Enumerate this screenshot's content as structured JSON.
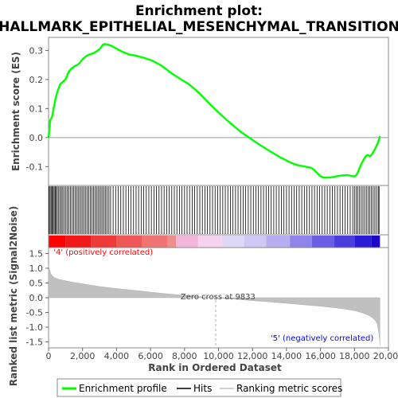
{
  "chart_data": [
    {
      "type": "line",
      "title_line1": "Enrichment plot:",
      "title_line2": "HALLMARK_EPITHELIAL_MESENCHYMAL_TRANSITION",
      "ylabel": "Enrichment score (ES)",
      "yticks": [
        "0.3",
        "0.2",
        "0.1",
        "0.0",
        "-0.1"
      ],
      "ytick_values": [
        0.3,
        0.2,
        0.1,
        0.0,
        -0.1
      ],
      "xlim": [
        0,
        20000
      ],
      "ylim": [
        -0.165,
        0.345
      ],
      "color": "#00ff00",
      "series": [
        {
          "name": "Enrichment profile",
          "x": [
            0,
            100,
            200,
            300,
            400,
            500,
            600,
            700,
            800,
            900,
            1000,
            1100,
            1200,
            1300,
            1400,
            1500,
            1600,
            1700,
            1800,
            1900,
            2000,
            2100,
            2200,
            2300,
            2400,
            2500,
            2600,
            2700,
            2800,
            2900,
            3000,
            3100,
            3200,
            3300,
            3400,
            3500,
            3600,
            3700,
            3800,
            4000,
            4200,
            4400,
            4600,
            4800,
            5000,
            5200,
            5400,
            5600,
            5800,
            6000,
            6200,
            6400,
            6600,
            6800,
            7000,
            7200,
            7400,
            7600,
            7800,
            8000,
            8200,
            8400,
            8600,
            8800,
            9000,
            9200,
            9400,
            9600,
            9800,
            10000,
            10200,
            10400,
            10600,
            10800,
            11000,
            11200,
            11400,
            11600,
            11800,
            12000,
            12200,
            12400,
            12600,
            12800,
            13000,
            13200,
            13400,
            13600,
            13800,
            14000,
            14200,
            14400,
            14600,
            14800,
            15000,
            15200,
            15400,
            15600,
            15800,
            16000,
            16200,
            16400,
            16600,
            16800,
            17000,
            17200,
            17400,
            17600,
            17800,
            18000,
            18100,
            18200,
            18300,
            18400,
            18500,
            18600,
            18700,
            18800,
            18900,
            19000,
            19100,
            19200,
            19300,
            19400,
            19500
          ],
          "y": [
            0.0,
            0.06,
            0.07,
            0.1,
            0.13,
            0.155,
            0.17,
            0.185,
            0.19,
            0.195,
            0.2,
            0.215,
            0.228,
            0.235,
            0.24,
            0.245,
            0.248,
            0.25,
            0.255,
            0.262,
            0.27,
            0.275,
            0.28,
            0.283,
            0.286,
            0.288,
            0.29,
            0.293,
            0.296,
            0.3,
            0.305,
            0.312,
            0.32,
            0.322,
            0.321,
            0.32,
            0.318,
            0.316,
            0.313,
            0.306,
            0.3,
            0.294,
            0.29,
            0.285,
            0.284,
            0.281,
            0.278,
            0.275,
            0.271,
            0.267,
            0.262,
            0.256,
            0.249,
            0.241,
            0.232,
            0.223,
            0.215,
            0.208,
            0.2,
            0.193,
            0.186,
            0.177,
            0.167,
            0.156,
            0.145,
            0.133,
            0.121,
            0.109,
            0.098,
            0.087,
            0.076,
            0.065,
            0.055,
            0.045,
            0.035,
            0.025,
            0.016,
            0.008,
            0.0,
            -0.008,
            -0.016,
            -0.024,
            -0.031,
            -0.039,
            -0.046,
            -0.053,
            -0.06,
            -0.067,
            -0.073,
            -0.079,
            -0.085,
            -0.09,
            -0.094,
            -0.097,
            -0.099,
            -0.101,
            -0.103,
            -0.11,
            -0.122,
            -0.133,
            -0.138,
            -0.138,
            -0.137,
            -0.135,
            -0.133,
            -0.131,
            -0.13,
            -0.129,
            -0.132,
            -0.134,
            -0.13,
            -0.12,
            -0.105,
            -0.092,
            -0.08,
            -0.07,
            -0.062,
            -0.06,
            -0.065,
            -0.06,
            -0.05,
            -0.04,
            -0.028,
            -0.015,
            0.005
          ]
        }
      ]
    },
    {
      "type": "hits",
      "label": "Hits",
      "xlim": [
        0,
        20000
      ],
      "positions": [
        30,
        90,
        150,
        210,
        270,
        330,
        390,
        450,
        520,
        600,
        680,
        760,
        840,
        930,
        1020,
        1110,
        1200,
        1290,
        1380,
        1470,
        1560,
        1650,
        1740,
        1830,
        1920,
        2010,
        2100,
        2190,
        2280,
        2370,
        2460,
        2550,
        2640,
        2730,
        2820,
        2910,
        3000,
        3090,
        3180,
        3270,
        3360,
        3450,
        3550,
        3650,
        3800,
        3950,
        4100,
        4250,
        4400,
        4550,
        4700,
        4850,
        5000,
        5150,
        5300,
        5450,
        5600,
        5750,
        5900,
        6050,
        6200,
        6350,
        6500,
        6650,
        6800,
        6950,
        7100,
        7250,
        7400,
        7550,
        7700,
        7850,
        8000,
        8150,
        8300,
        8450,
        8600,
        8750,
        8900,
        9050,
        9200,
        9350,
        9500,
        9650,
        9800,
        9950,
        10100,
        10250,
        10400,
        10550,
        10700,
        10850,
        11000,
        11150,
        11300,
        11450,
        11600,
        11750,
        11900,
        12050,
        12200,
        12350,
        12500,
        12650,
        12800,
        12950,
        13100,
        13250,
        13400,
        13550,
        13700,
        13850,
        14000,
        14150,
        14300,
        14450,
        14600,
        14750,
        14900,
        15050,
        15200,
        15350,
        15500,
        15650,
        15800,
        15950,
        16100,
        16250,
        16400,
        16550,
        16700,
        16850,
        17000,
        17150,
        17300,
        17450,
        17600,
        17750,
        17900,
        18000,
        18100,
        18200,
        18300,
        18400,
        18500,
        18600,
        18700,
        18800,
        18900,
        19000,
        19100,
        19200,
        19300,
        19400,
        19450
      ]
    },
    {
      "type": "heatmap",
      "xlim": [
        0,
        20000
      ],
      "segments": [
        {
          "x": [
            0,
            1000
          ],
          "color": "#ff0000"
        },
        {
          "x": [
            1000,
            2500
          ],
          "color": "#f01818"
        },
        {
          "x": [
            2500,
            4000
          ],
          "color": "#f03a3a"
        },
        {
          "x": [
            4000,
            5500
          ],
          "color": "#f05858"
        },
        {
          "x": [
            5500,
            7000
          ],
          "color": "#f07474"
        },
        {
          "x": [
            7000,
            7500
          ],
          "color": "#f08e8e"
        },
        {
          "x": [
            7500,
            8800
          ],
          "color": "#f2b6d8"
        },
        {
          "x": [
            8800,
            10200
          ],
          "color": "#f6d2ee"
        },
        {
          "x": [
            10200,
            11500
          ],
          "color": "#ddd8f6"
        },
        {
          "x": [
            11500,
            12800
          ],
          "color": "#cec8f4"
        },
        {
          "x": [
            12800,
            14200
          ],
          "color": "#b6aef0"
        },
        {
          "x": [
            14200,
            15500
          ],
          "color": "#8e84ea"
        },
        {
          "x": [
            15500,
            16800
          ],
          "color": "#6a5ee4"
        },
        {
          "x": [
            16800,
            18000
          ],
          "color": "#4a3ede"
        },
        {
          "x": [
            18000,
            19000
          ],
          "color": "#2a1cd6"
        },
        {
          "x": [
            19000,
            19500
          ],
          "color": "#1a08c8"
        }
      ]
    },
    {
      "type": "area",
      "ylabel": "Ranked list metric (Signal2Noise)",
      "xlabel": "Rank in Ordered Dataset",
      "xticks": [
        "0",
        "2,000",
        "4,000",
        "6,000",
        "8,000",
        "10,000",
        "12,000",
        "14,000",
        "16,000",
        "18,000",
        "20,000"
      ],
      "xtick_values": [
        0,
        2000,
        4000,
        6000,
        8000,
        10000,
        12000,
        14000,
        16000,
        18000,
        20000
      ],
      "yticks": [
        "1.5",
        "1.0",
        "0.5",
        "0.0",
        "-0.5",
        "-1.0",
        "-1.5"
      ],
      "ytick_values": [
        1.5,
        1.0,
        0.5,
        0.0,
        -0.5,
        -1.0,
        -1.5
      ],
      "xlim": [
        0,
        20000
      ],
      "ylim": [
        -1.7,
        1.7
      ],
      "color": "#c0c0c0",
      "series": [
        {
          "name": "Ranking metric scores",
          "x": [
            0,
            50,
            150,
            300,
            500,
            800,
            1200,
            2000,
            3000,
            4000,
            5000,
            6000,
            7000,
            8000,
            9000,
            9833,
            10500,
            11000,
            12000,
            13000,
            14000,
            15000,
            16000,
            17000,
            17500,
            18000,
            18500,
            18800,
            19000,
            19200,
            19350,
            19450,
            19500
          ],
          "y": [
            1.12,
            0.95,
            0.8,
            0.7,
            0.64,
            0.6,
            0.55,
            0.47,
            0.38,
            0.31,
            0.25,
            0.19,
            0.13,
            0.08,
            0.03,
            0.0,
            -0.03,
            -0.05,
            -0.1,
            -0.14,
            -0.19,
            -0.24,
            -0.29,
            -0.35,
            -0.39,
            -0.44,
            -0.52,
            -0.59,
            -0.66,
            -0.75,
            -0.9,
            -1.25,
            -1.62
          ]
        }
      ],
      "annotations": [
        {
          "text": "'4' (positively correlated)",
          "x": 200,
          "color": "#ff0000"
        },
        {
          "text": "Zero cross at 9833",
          "x": 9833,
          "color": "#444444"
        },
        {
          "text": "'5' (negatively correlated)",
          "x": 15500,
          "color": "#0000ff"
        }
      ],
      "zero_cross": 9833
    }
  ],
  "legend": {
    "items": [
      {
        "label": "Enrichment profile",
        "color": "#00ff00",
        "style": "line-thick"
      },
      {
        "label": "Hits",
        "color": "#000000",
        "style": "line"
      },
      {
        "label": "Ranking metric scores",
        "color": "#c0c0c0",
        "style": "line"
      }
    ]
  }
}
